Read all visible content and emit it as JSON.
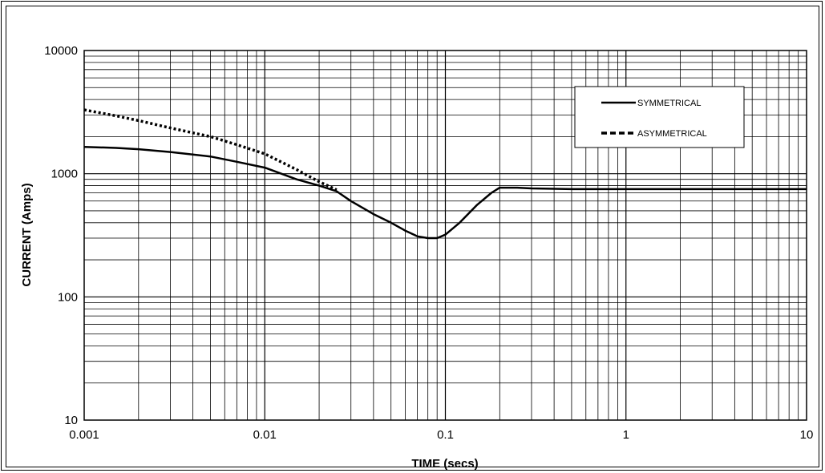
{
  "chart_data": {
    "type": "line",
    "xscale": "log",
    "yscale": "log",
    "xlim": [
      0.001,
      10
    ],
    "ylim": [
      10,
      10000
    ],
    "xlabel": "TIME (secs)",
    "ylabel": "CURRENT (Amps)",
    "x_ticks": [
      "0.001",
      "0.01",
      "0.1",
      "1",
      "10"
    ],
    "y_ticks": [
      "10",
      "100",
      "1000",
      "10000"
    ],
    "grid": true,
    "legend_position": "top-right",
    "series": [
      {
        "name": "SYMMETRICAL",
        "style": "solid",
        "color": "#000000",
        "points": [
          [
            0.001,
            1650
          ],
          [
            0.0015,
            1620
          ],
          [
            0.002,
            1580
          ],
          [
            0.003,
            1500
          ],
          [
            0.005,
            1380
          ],
          [
            0.007,
            1250
          ],
          [
            0.01,
            1120
          ],
          [
            0.015,
            900
          ],
          [
            0.02,
            800
          ],
          [
            0.025,
            720
          ],
          [
            0.03,
            600
          ],
          [
            0.04,
            470
          ],
          [
            0.05,
            400
          ],
          [
            0.06,
            345
          ],
          [
            0.07,
            310
          ],
          [
            0.08,
            300
          ],
          [
            0.09,
            300
          ],
          [
            0.1,
            320
          ],
          [
            0.12,
            400
          ],
          [
            0.15,
            560
          ],
          [
            0.18,
            700
          ],
          [
            0.2,
            770
          ],
          [
            0.25,
            770
          ],
          [
            0.3,
            760
          ],
          [
            0.5,
            750
          ],
          [
            1,
            750
          ],
          [
            2,
            750
          ],
          [
            5,
            750
          ],
          [
            10,
            750
          ]
        ]
      },
      {
        "name": "ASYMMETRICAL",
        "style": "dashed",
        "color": "#000000",
        "points": [
          [
            0.001,
            3300
          ],
          [
            0.0015,
            2950
          ],
          [
            0.002,
            2700
          ],
          [
            0.003,
            2350
          ],
          [
            0.005,
            2000
          ],
          [
            0.007,
            1720
          ],
          [
            0.01,
            1450
          ],
          [
            0.015,
            1080
          ],
          [
            0.02,
            860
          ],
          [
            0.025,
            740
          ]
        ]
      }
    ]
  }
}
